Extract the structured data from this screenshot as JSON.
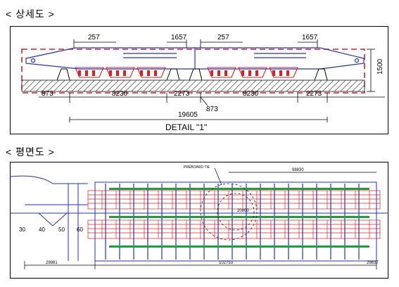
{
  "headings": {
    "detail_view": "< 상세도 >",
    "plan_view": "< 평면도 >"
  },
  "detail": {
    "top_dims": [
      "257",
      "1657",
      "257",
      "1657"
    ],
    "height_dim": "1500",
    "bottom_dims": [
      "873",
      "8230",
      "2273",
      "8230",
      "2273"
    ],
    "mid_dim": "873",
    "total_dim": "19605",
    "caption": "DETAIL \"1\""
  },
  "plan": {
    "axis_labels": [
      "30",
      "40",
      "50",
      "60"
    ],
    "bottom_dims": [
      "29981",
      "102753",
      "29837"
    ],
    "center_label": "20800",
    "top_dim": "98830",
    "callout": "PREBOARD TIE"
  },
  "colors": {
    "rail": "#2230c8",
    "bogie": "#e02020",
    "ground_hatch": "#404040",
    "green_marks": "#1aa03a"
  }
}
